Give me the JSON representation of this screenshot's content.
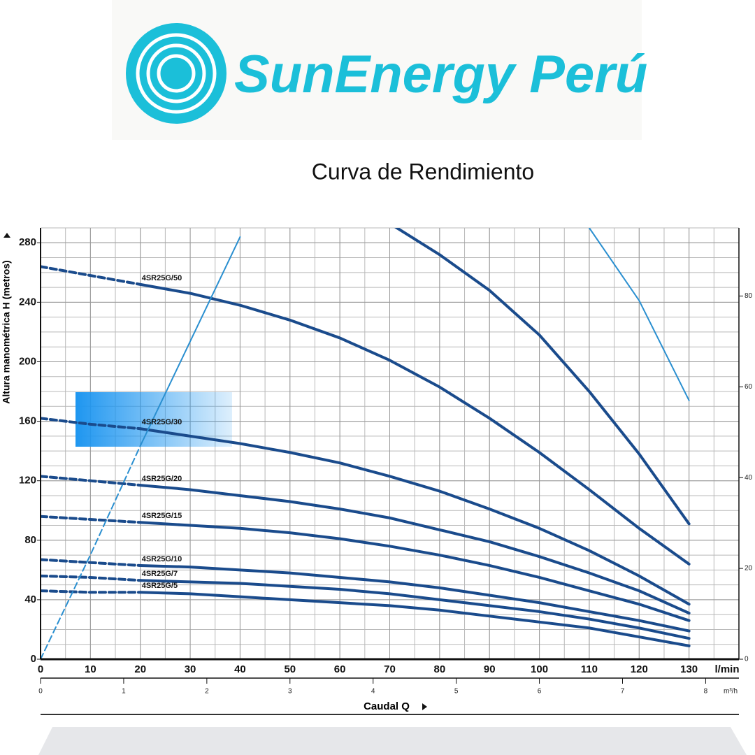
{
  "logo_text": "SunEnergy Perú",
  "title": "Curva de  Rendimiento",
  "chart_data": {
    "type": "line",
    "y_label": "Altura manométrica H (metros)",
    "x_label": "Caudal Q",
    "x_unit": "l/min",
    "x2_unit": "m³/h",
    "x": [
      0,
      10,
      20,
      30,
      40,
      50,
      60,
      70,
      80,
      90,
      100,
      110,
      120,
      130
    ],
    "xlim": [
      0,
      140
    ],
    "xticks": [
      0,
      10,
      20,
      30,
      40,
      50,
      60,
      70,
      80,
      90,
      100,
      110,
      120,
      130
    ],
    "x2lim": [
      0,
      8.4
    ],
    "x2ticks": [
      0,
      1,
      2,
      3,
      4,
      5,
      6,
      7,
      8
    ],
    "ylim": [
      0,
      290
    ],
    "yticks": [
      0,
      40,
      80,
      120,
      160,
      200,
      240,
      280
    ],
    "y2lim": [
      0,
      95
    ],
    "y2ticks": [
      0,
      20,
      40,
      60,
      80
    ],
    "grid": true,
    "x_grid_divisions": 2,
    "y_grid_divisions": 4,
    "dashed_below_x": 20,
    "series": [
      {
        "color": "#1a4b8c",
        "values": [
          null,
          null,
          null,
          null,
          null,
          null,
          null,
          293,
          272,
          248,
          218,
          180,
          138,
          91
        ]
      },
      {
        "name": "4SR25G/50",
        "color": "#1a4b8c",
        "values": [
          264,
          258,
          252,
          246,
          238,
          228,
          216,
          201,
          183,
          162,
          139,
          114,
          88,
          64
        ]
      },
      {
        "name": "4SR25G/30",
        "color": "#1a4b8c",
        "values": [
          162,
          158,
          155,
          150,
          145,
          139,
          132,
          123,
          113,
          101,
          88,
          73,
          56,
          37
        ]
      },
      {
        "name": "4SR25G/20",
        "color": "#1a4b8c",
        "values": [
          123,
          120,
          117,
          114,
          110,
          106,
          101,
          95,
          87,
          79,
          69,
          58,
          46,
          31
        ]
      },
      {
        "name": "4SR25G/15",
        "color": "#1a4b8c",
        "values": [
          96,
          94,
          92,
          90,
          88,
          85,
          81,
          76,
          70,
          63,
          55,
          46,
          37,
          26
        ]
      },
      {
        "name": "4SR25G/10",
        "color": "#1a4b8c",
        "values": [
          67,
          65,
          63,
          62,
          60,
          58,
          55,
          52,
          48,
          43,
          38,
          32,
          26,
          19
        ]
      },
      {
        "name": "4SR25G/7",
        "color": "#1a4b8c",
        "values": [
          56,
          55,
          53,
          52,
          51,
          49,
          47,
          44,
          40,
          36,
          32,
          27,
          21,
          14
        ]
      },
      {
        "name": "4SR25G/5",
        "color": "#1a4b8c",
        "values": [
          46,
          45,
          45,
          44,
          42,
          40,
          38,
          36,
          33,
          29,
          25,
          21,
          15,
          9
        ]
      },
      {
        "color": "#2a8fd0",
        "axis": "y2",
        "values": [
          0,
          23,
          47,
          70,
          93,
          null,
          null,
          null,
          null,
          null,
          null,
          95,
          79,
          57
        ]
      }
    ]
  }
}
